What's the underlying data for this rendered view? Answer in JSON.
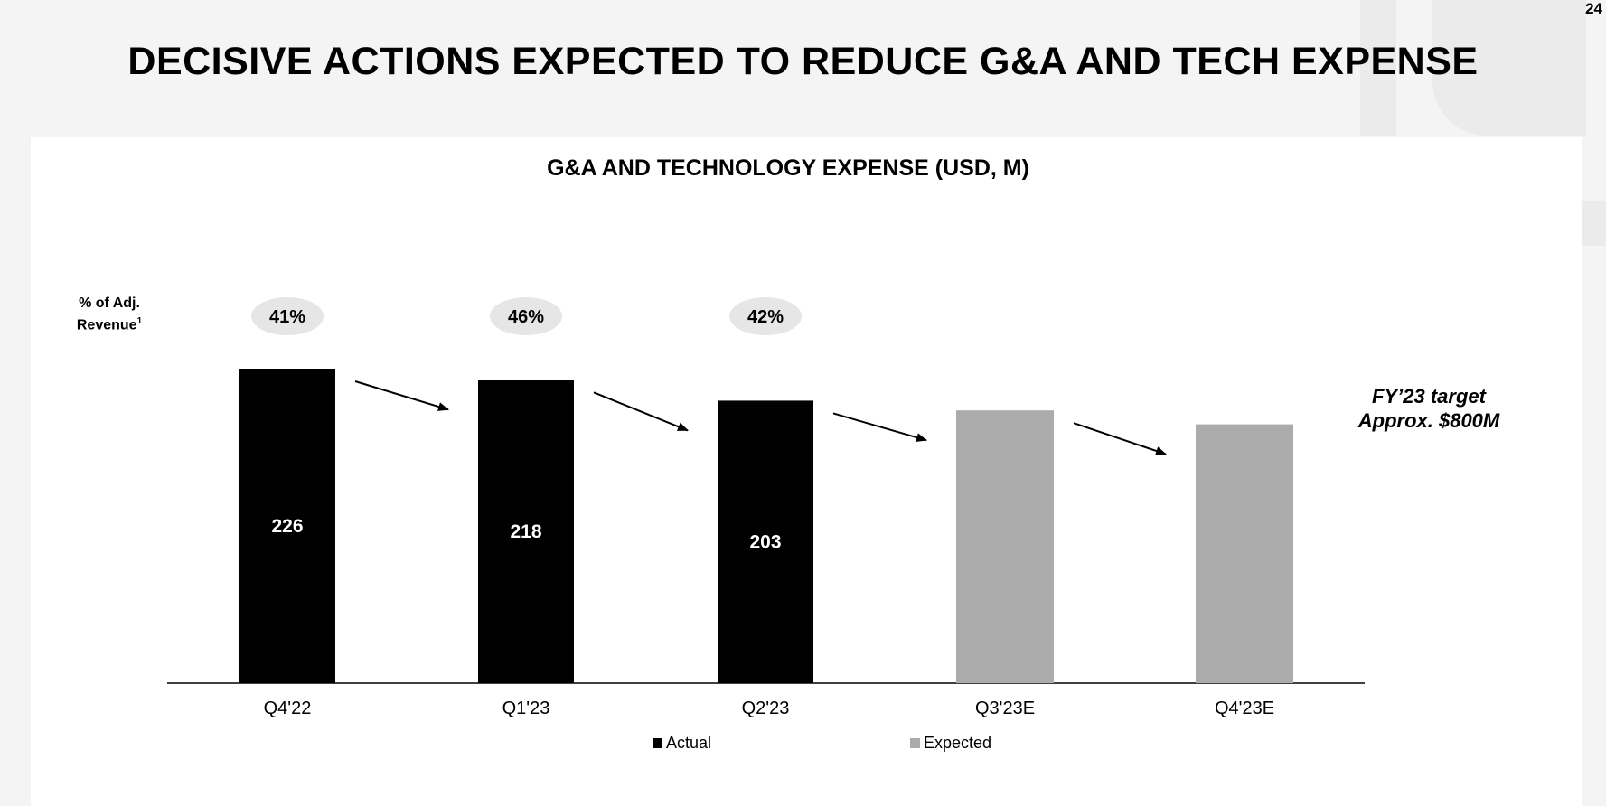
{
  "slide_number": "24",
  "slide_title": "DECISIVE ACTIONS EXPECTED TO REDUCE G&A AND TECH EXPENSE",
  "pct_label": {
    "line1": "% of Adj.",
    "line2": "Revenue",
    "footnote": "1"
  },
  "target_note": {
    "line1": "FY’23 target",
    "line2": "Approx. $800M"
  },
  "legend": {
    "actual": "Actual",
    "expected": "Expected"
  },
  "colors": {
    "actual": "#000000",
    "expected": "#ababab",
    "pct_bubble": "#e6e6e6",
    "axis": "#000000"
  },
  "chart_data": {
    "type": "bar",
    "title": "G&A AND TECHNOLOGY EXPENSE (USD, M)",
    "categories": [
      "Q4'22",
      "Q1'23",
      "Q2'23",
      "Q3'23E",
      "Q4'23E"
    ],
    "values": [
      226,
      218,
      203,
      196,
      186
    ],
    "value_labels": [
      "226",
      "218",
      "203",
      "",
      ""
    ],
    "status": [
      "actual",
      "actual",
      "actual",
      "expected",
      "expected"
    ],
    "pct_of_adj_revenue": [
      "41%",
      "46%",
      "42%",
      "",
      ""
    ],
    "series": [
      {
        "name": "Actual",
        "values": [
          226,
          218,
          203,
          null,
          null
        ]
      },
      {
        "name": "Expected",
        "values": [
          null,
          null,
          null,
          196,
          186
        ]
      }
    ],
    "ylim": [
      0,
      230
    ],
    "xlabel": "",
    "ylabel": "",
    "grid": false,
    "legend_position": "bottom"
  }
}
